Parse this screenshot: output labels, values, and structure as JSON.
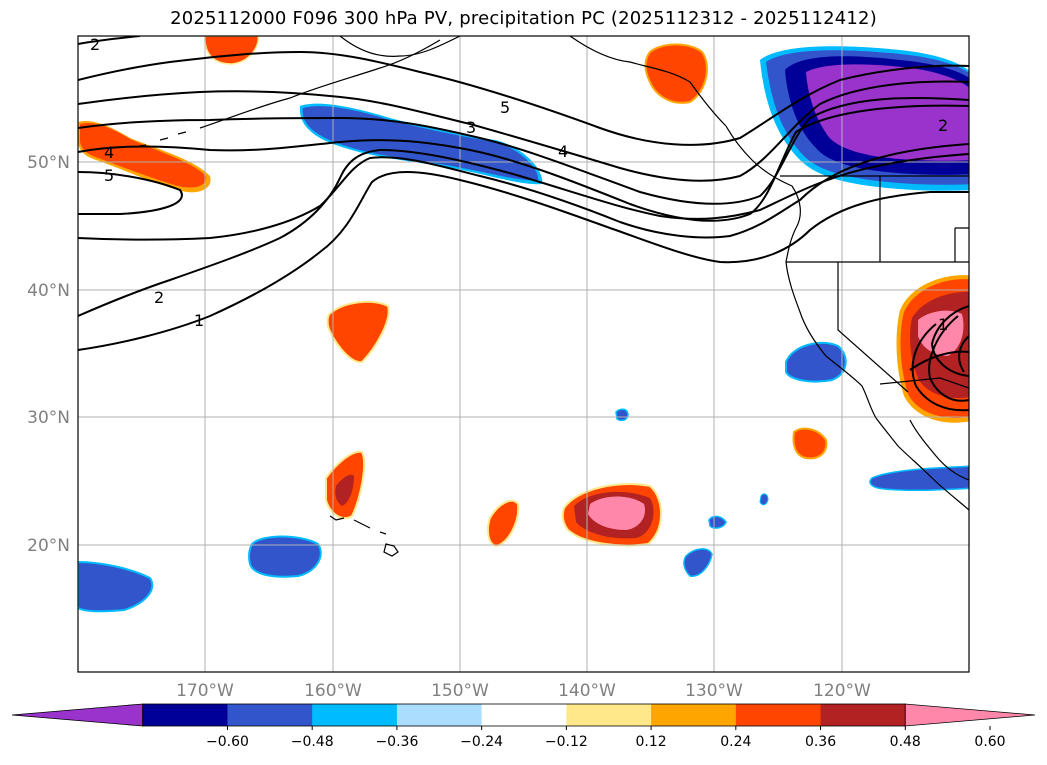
{
  "title": "2025112000 F096 300 hPa PV, precipitation PC (2025112312 - 2025112412)",
  "map": {
    "lat_labels": [
      "50°N",
      "40°N",
      "30°N",
      "20°N"
    ],
    "lon_labels": [
      "170°W",
      "160°W",
      "150°W",
      "140°W",
      "130°W",
      "120°W"
    ],
    "grid": true
  },
  "contour_labels": [
    "2",
    "5",
    "3",
    "4",
    "4",
    "5",
    "2",
    "1",
    "2",
    "1"
  ],
  "colorbar": {
    "ticks": [
      "−0.60",
      "−0.48",
      "−0.36",
      "−0.24",
      "−0.12",
      "0.12",
      "0.24",
      "0.36",
      "0.48",
      "0.60"
    ],
    "colors": [
      "#9933cc",
      "#000099",
      "#3355cc",
      "#00bbff",
      "#aaddff",
      "#ffffff",
      "#ffe88a",
      "#ffa500",
      "#ff4500",
      "#b22222",
      "#ff88aa"
    ],
    "extend": "both"
  },
  "colors": {
    "negative_dark": "#000099",
    "negative_purple": "#9933cc",
    "negative_mid": "#3355cc",
    "negative_light": "#00bbff",
    "positive_orange": "#ff4500",
    "positive_red": "#b22222",
    "positive_pink": "#ff88aa",
    "positive_yellow": "#ffe88a"
  }
}
